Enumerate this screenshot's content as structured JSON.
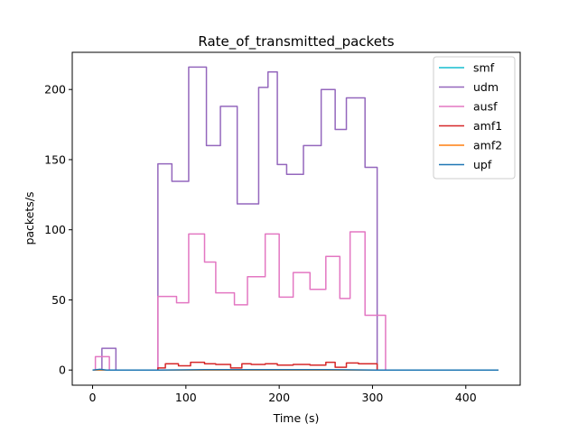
{
  "chart_data": {
    "type": "line",
    "title": "Rate_of_transmitted_packets",
    "xlabel": "Time (s)",
    "ylabel": "packets/s",
    "xlim": [
      -21.8,
      458.3
    ],
    "ylim": [
      -10.8,
      226.5
    ],
    "x_ticks": [
      0,
      100,
      200,
      300,
      400
    ],
    "y_ticks": [
      0,
      50,
      100,
      150,
      200
    ],
    "grid": false,
    "legend_position": "top-right",
    "series": [
      {
        "name": "smf",
        "color": "#17becf",
        "x": [
          0,
          435
        ],
        "y": [
          0,
          0
        ]
      },
      {
        "name": "udm",
        "color": "#9467bd",
        "x": [
          0,
          10,
          10,
          25,
          25,
          70,
          70,
          85,
          85,
          103,
          103,
          122,
          122,
          137,
          137,
          155,
          155,
          170,
          170,
          178,
          178,
          188,
          188,
          198,
          198,
          208,
          208,
          226,
          226,
          245,
          245,
          260,
          260,
          272,
          272,
          292,
          292,
          301,
          301,
          305,
          305,
          310,
          310,
          435
        ],
        "y": [
          0,
          0,
          15.5,
          15.5,
          0,
          0,
          147,
          147,
          134.5,
          134.5,
          216,
          216,
          160,
          160,
          188,
          188,
          118.5,
          118.5,
          118.5,
          118.5,
          201.5,
          201.5,
          212.5,
          212.5,
          146.5,
          146.5,
          139.5,
          139.5,
          160,
          160,
          200,
          200,
          171.5,
          171.5,
          194,
          194,
          144.5,
          144.5,
          144.5,
          144.5,
          0,
          0,
          0,
          0
        ]
      },
      {
        "name": "ausf",
        "color": "#e377c2",
        "x": [
          0,
          3,
          3,
          18,
          18,
          70,
          70,
          90,
          90,
          103,
          103,
          120,
          120,
          132,
          132,
          152,
          152,
          166,
          166,
          185,
          185,
          200,
          200,
          215,
          215,
          233,
          233,
          250,
          250,
          265,
          265,
          276,
          276,
          292,
          292,
          305,
          305,
          314,
          314,
          435
        ],
        "y": [
          0,
          0,
          9.5,
          9.5,
          0,
          0,
          52.5,
          52.5,
          48,
          48,
          97,
          97,
          77,
          77,
          55,
          55,
          46.5,
          46.5,
          66.5,
          66.5,
          97,
          97,
          52,
          52,
          69.5,
          69.5,
          57.5,
          57.5,
          81,
          81,
          51,
          51,
          98.5,
          98.5,
          39,
          39,
          39,
          39,
          0,
          0
        ]
      },
      {
        "name": "amf1",
        "color": "#d62728",
        "x": [
          0,
          70,
          70,
          78,
          78,
          92,
          92,
          105,
          105,
          120,
          120,
          132,
          132,
          148,
          148,
          160,
          160,
          170,
          170,
          185,
          185,
          198,
          198,
          215,
          215,
          233,
          233,
          250,
          250,
          260,
          260,
          272,
          272,
          285,
          285,
          305,
          305,
          435
        ],
        "y": [
          0,
          0,
          1.5,
          1.5,
          4.5,
          4.5,
          3,
          3,
          5.5,
          5.5,
          4.5,
          4.5,
          4,
          4,
          1.5,
          1.5,
          4.5,
          4.5,
          4,
          4,
          4.5,
          4.5,
          3.5,
          3.5,
          4,
          4,
          3.5,
          3.5,
          5.5,
          5.5,
          2,
          2,
          5,
          5,
          4.5,
          4.5,
          0,
          0
        ]
      },
      {
        "name": "amf2",
        "color": "#ff7f0e",
        "x": [
          0,
          435
        ],
        "y": [
          0,
          0
        ]
      },
      {
        "name": "upf",
        "color": "#1f77b4",
        "x": [
          0,
          8,
          15,
          70,
          120,
          250,
          305,
          435
        ],
        "y": [
          0,
          0.5,
          0,
          0,
          0.3,
          0.3,
          0,
          0
        ]
      }
    ]
  }
}
